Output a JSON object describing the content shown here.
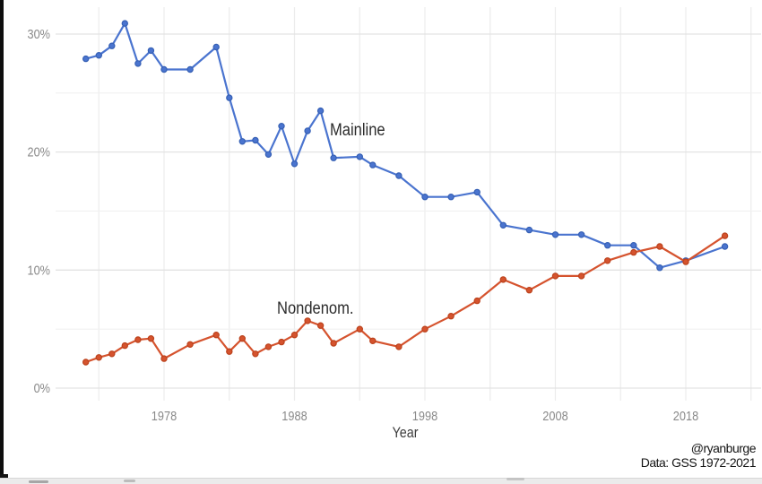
{
  "chart_data": {
    "type": "line",
    "title": "",
    "xlabel": "Year",
    "ylabel": "",
    "xlim": [
      1971,
      2023
    ],
    "ylim": [
      0,
      32
    ],
    "grid": true,
    "legend_position": "inline-annotations",
    "x": [
      1972,
      1973,
      1974,
      1975,
      1976,
      1977,
      1978,
      1980,
      1982,
      1983,
      1984,
      1985,
      1986,
      1987,
      1988,
      1989,
      1990,
      1991,
      1993,
      1994,
      1996,
      1998,
      2000,
      2002,
      2004,
      2006,
      2008,
      2010,
      2012,
      2014,
      2016,
      2018,
      2021
    ],
    "series": [
      {
        "name": "Mainline",
        "color": "#4a74cf",
        "marker_stroke": "#3660b4",
        "values": [
          27.9,
          28.2,
          29.0,
          30.9,
          27.5,
          28.6,
          27.0,
          27.0,
          28.9,
          24.6,
          20.9,
          21.0,
          19.8,
          22.2,
          19.0,
          21.8,
          23.5,
          19.5,
          19.6,
          18.9,
          18.0,
          16.2,
          16.2,
          16.6,
          13.8,
          13.4,
          13.0,
          13.0,
          12.1,
          12.1,
          10.2,
          10.8,
          12.0
        ]
      },
      {
        "name": "Nondenom.",
        "color": "#d5532e",
        "marker_stroke": "#bb421c",
        "values": [
          2.2,
          2.6,
          2.9,
          3.6,
          4.1,
          4.2,
          2.5,
          3.7,
          4.5,
          3.1,
          4.2,
          2.9,
          3.5,
          3.9,
          4.5,
          5.7,
          5.3,
          3.8,
          5.0,
          4.0,
          3.5,
          5.0,
          6.1,
          7.4,
          9.2,
          8.3,
          9.5,
          9.5,
          10.8,
          11.5,
          12.0,
          10.7,
          12.9
        ]
      }
    ],
    "x_ticks": [
      {
        "value": 1978,
        "label": "1978"
      },
      {
        "value": 1988,
        "label": "1988"
      },
      {
        "value": 1998,
        "label": "1998"
      },
      {
        "value": 2008,
        "label": "2008"
      },
      {
        "value": 2018,
        "label": "2018"
      }
    ],
    "y_ticks": [
      {
        "value": 0,
        "label": "0%"
      },
      {
        "value": 10,
        "label": "10%"
      },
      {
        "value": 20,
        "label": "20%"
      },
      {
        "value": 30,
        "label": "30%"
      }
    ],
    "y_minor_gridlines": [
      5,
      15,
      25
    ],
    "x_gridlines": [
      1973,
      1978,
      1983,
      1988,
      1993,
      1998,
      2003,
      2008,
      2013,
      2018,
      2023
    ]
  },
  "credits": {
    "line1": "@ryanburge",
    "line2": "Data: GSS 1972-2021"
  },
  "colors": {
    "major_grid": "#e3e3e3",
    "minor_grid": "#f1f1f1",
    "vertical_grid": "#ececec",
    "tick_label": "#8a8a8a",
    "axis_title": "#3c3c3c",
    "annotation": "#2b2b2b"
  }
}
